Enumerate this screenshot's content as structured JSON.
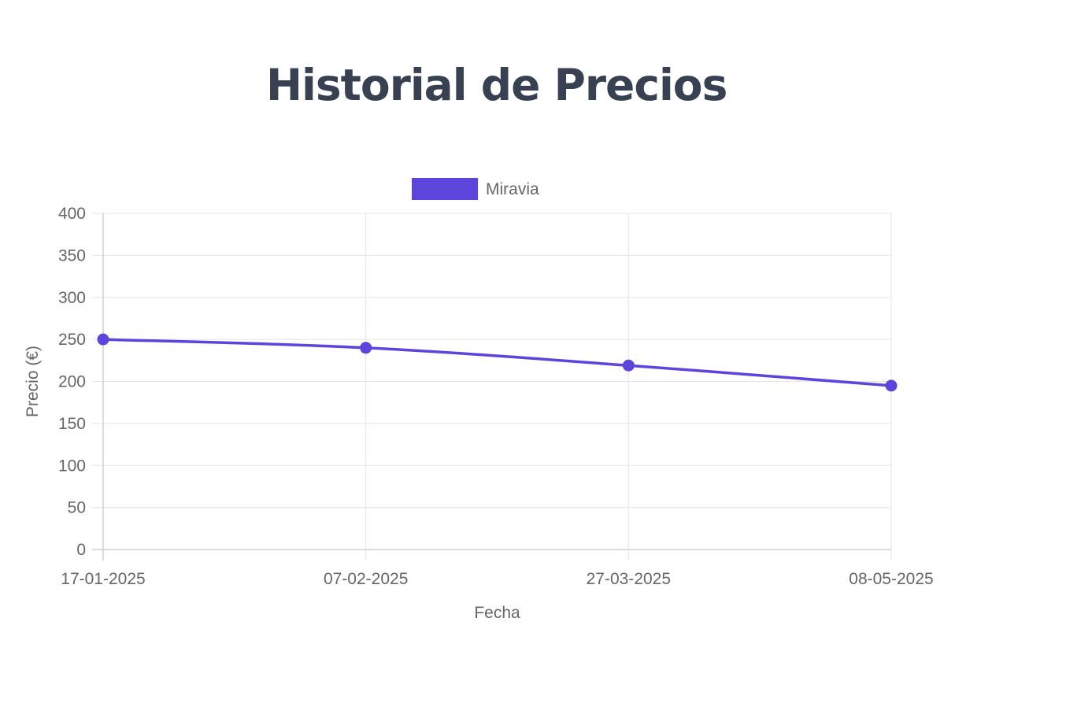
{
  "page": {
    "title": "Historial de Precios"
  },
  "chart_data": {
    "type": "line",
    "title": "",
    "x": [
      "17-01-2025",
      "07-02-2025",
      "27-03-2025",
      "08-05-2025"
    ],
    "series": [
      {
        "name": "Miravia",
        "values": [
          250,
          240,
          219,
          195
        ],
        "color": "#5b45dd"
      }
    ],
    "xlabel": "Fecha",
    "ylabel": "Precio (€)",
    "ylim": [
      0,
      400
    ],
    "yticks": [
      0,
      50,
      100,
      150,
      200,
      250,
      300,
      350,
      400
    ],
    "grid": true,
    "legend_position": "top"
  }
}
